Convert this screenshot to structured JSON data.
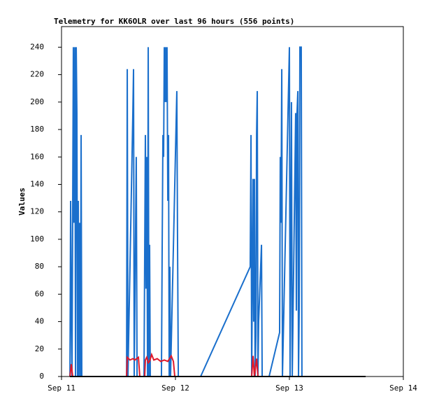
{
  "chart_data": {
    "type": "line",
    "title": "Telemetry for KK6OLR over last 96 hours (556 points)",
    "y_label": "Values",
    "xlim": [
      11,
      14
    ],
    "xticks": [
      {
        "value": 11,
        "label": "Sep 11"
      },
      {
        "value": 12,
        "label": "Sep 12"
      },
      {
        "value": 13,
        "label": "Sep 13"
      },
      {
        "value": 14,
        "label": "Sep 14"
      }
    ],
    "ylim": [
      0,
      255
    ],
    "yticks": [
      0,
      20,
      40,
      60,
      80,
      100,
      120,
      140,
      160,
      180,
      200,
      220,
      240
    ],
    "grid": false,
    "series": [
      {
        "color": "#1a6fcc",
        "x": [
          11.074,
          11.08,
          11.086,
          11.092,
          11.104,
          11.11,
          11.117,
          11.123,
          11.129,
          11.135,
          11.141,
          11.147,
          11.153,
          11.16,
          11.166,
          11.172,
          11.178,
          11.571,
          11.577,
          11.583,
          11.626,
          11.632,
          11.638,
          11.656,
          11.663,
          11.724,
          11.73,
          11.736,
          11.742,
          11.748,
          11.755,
          11.761,
          11.767,
          11.773,
          11.779,
          11.877,
          11.883,
          11.89,
          11.896,
          11.902,
          11.908,
          11.914,
          11.92,
          11.926,
          11.933,
          11.939,
          11.945,
          11.951,
          11.957,
          12.012,
          12.018,
          12.025,
          12.221,
          12.656,
          12.663,
          12.669,
          12.681,
          12.687,
          12.693,
          12.699,
          12.706,
          12.712,
          12.718,
          12.724,
          12.73,
          12.755,
          12.761,
          12.822,
          12.914,
          12.92,
          12.926,
          12.933,
          12.939,
          13.0,
          13.006,
          13.018,
          13.025,
          13.055,
          13.061,
          13.067,
          13.074,
          13.08,
          13.086,
          13.092,
          13.098,
          13.104,
          13.11
        ],
        "values": [
          0,
          128,
          48,
          0,
          240,
          112,
          240,
          0,
          240,
          192,
          0,
          128,
          0,
          112,
          0,
          176,
          0,
          0,
          224,
          0,
          192,
          224,
          0,
          160,
          0,
          0,
          88,
          176,
          64,
          160,
          0,
          240,
          0,
          96,
          0,
          0,
          88,
          176,
          160,
          240,
          200,
          240,
          200,
          240,
          128,
          176,
          0,
          80,
          0,
          208,
          104,
          0,
          0,
          80,
          176,
          0,
          144,
          40,
          144,
          0,
          30,
          176,
          208,
          0,
          40,
          96,
          0,
          0,
          32,
          160,
          112,
          224,
          0,
          240,
          0,
          200,
          0,
          192,
          48,
          192,
          208,
          0,
          48,
          240,
          240,
          240,
          0
        ]
      },
      {
        "color": "#e0182a",
        "x": [
          11.074,
          11.086,
          11.098,
          11.571,
          11.577,
          11.601,
          11.626,
          11.644,
          11.675,
          11.687,
          11.73,
          11.736,
          11.748,
          11.761,
          11.773,
          11.791,
          11.81,
          11.84,
          11.871,
          11.902,
          11.933,
          11.963,
          11.982,
          11.994,
          12.669,
          12.681,
          12.693,
          12.712,
          12.724
        ],
        "values": [
          0,
          9,
          0,
          0,
          14,
          12,
          13,
          12,
          14,
          0,
          0,
          12,
          14,
          10,
          11,
          16,
          12,
          13,
          11,
          12,
          11,
          15,
          11,
          0,
          0,
          15,
          0,
          13,
          0
        ]
      },
      {
        "color": "#000000",
        "x": [
          11.074,
          13.669
        ],
        "values": [
          0,
          0
        ]
      }
    ]
  }
}
